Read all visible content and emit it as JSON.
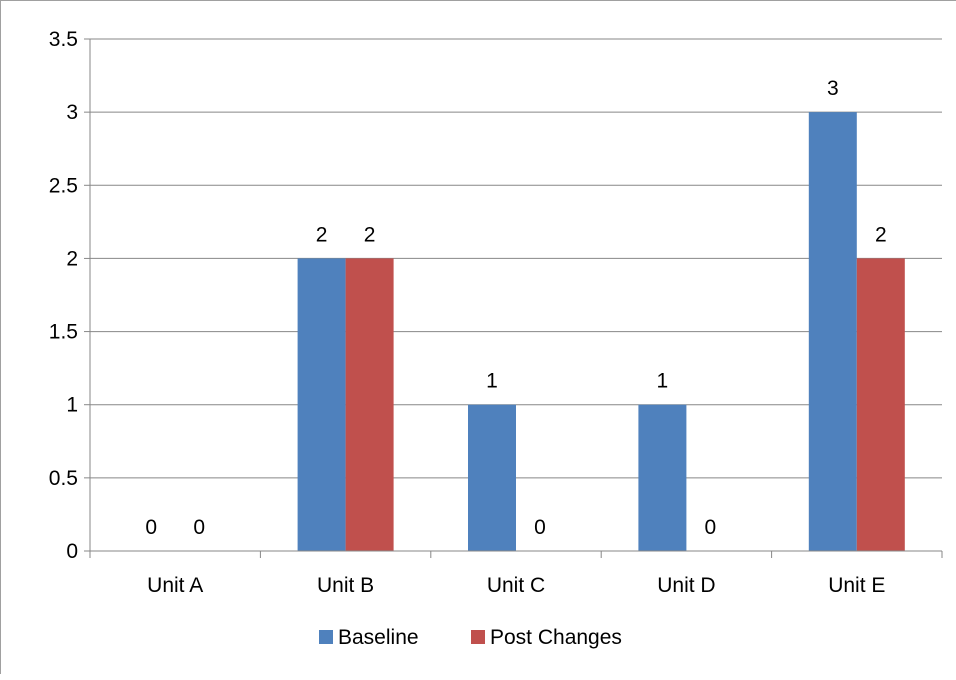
{
  "chart_data": {
    "type": "bar",
    "title": "",
    "xlabel": "",
    "ylabel": "",
    "categories": [
      "Unit A",
      "Unit B",
      "Unit C",
      "Unit D",
      "Unit E"
    ],
    "series": [
      {
        "name": "Baseline",
        "color": "#4f81bd",
        "values": [
          0,
          2,
          1,
          1,
          3
        ]
      },
      {
        "name": "Post Changes",
        "color": "#c0504d",
        "values": [
          0,
          2,
          0,
          0,
          2
        ]
      }
    ],
    "ylim": [
      0,
      3.5
    ],
    "yticks": [
      "0",
      "0.5",
      "1",
      "1.5",
      "2",
      "2.5",
      "3",
      "3.5"
    ],
    "grid": true,
    "data_labels": true,
    "legend_position": "bottom"
  }
}
